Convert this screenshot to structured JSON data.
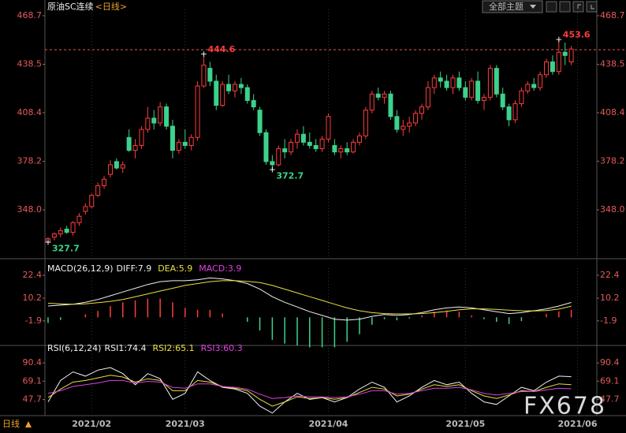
{
  "header": {
    "title": "原油SC连续",
    "period": "<日线>",
    "theme_button": "全部主题"
  },
  "footer": {
    "period": "日线",
    "watermark": "FX678"
  },
  "chart_data": [
    {
      "type": "candlestick",
      "up_color": "#ff3c3c",
      "down_color": "#3cd28c",
      "xlim": [
        -0.5,
        88.1
      ],
      "ylim": [
        317.6,
        472.6
      ],
      "yticks": [
        468.7,
        438.5,
        408.4,
        378.2,
        {
          "value": 348,
          "label": "348.0"
        }
      ],
      "xticks": [
        {
          "value": 7,
          "label": "2021/02"
        },
        {
          "value": 22,
          "label": "2021/03"
        },
        {
          "value": 45,
          "label": "2021/04"
        },
        {
          "value": 67,
          "label": "2021/05"
        },
        {
          "value": 85,
          "label": "2021/06"
        }
      ],
      "ref_line": 447.6,
      "annotations": [
        444.6,
        453.6,
        372.7,
        327.7
      ],
      "candles": [
        [
          328,
          331,
          327.7,
          330
        ],
        [
          331,
          334,
          329,
          333
        ],
        [
          333,
          337,
          331,
          335
        ],
        [
          336,
          338,
          333,
          334
        ],
        [
          334,
          341,
          332,
          340
        ],
        [
          340,
          346,
          338,
          344
        ],
        [
          347,
          352,
          345,
          350
        ],
        [
          350,
          358,
          349,
          357
        ],
        [
          357,
          365,
          356,
          363
        ],
        [
          363,
          369,
          361,
          367
        ],
        [
          370,
          379,
          368,
          376
        ],
        [
          378,
          380,
          373,
          374
        ],
        [
          374,
          378,
          371,
          376
        ],
        [
          393,
          398,
          384,
          385
        ],
        [
          385,
          392,
          380,
          388
        ],
        [
          388,
          400,
          386,
          398
        ],
        [
          398,
          412,
          396,
          405
        ],
        [
          405,
          410,
          398,
          402
        ],
        [
          402,
          415,
          400,
          412
        ],
        [
          412,
          414,
          398,
          400
        ],
        [
          400,
          404,
          380,
          385
        ],
        [
          385,
          392,
          383,
          390
        ],
        [
          390,
          398,
          386,
          388
        ],
        [
          388,
          395,
          385,
          393
        ],
        [
          393,
          428,
          391,
          425
        ],
        [
          425,
          444.6,
          424,
          438
        ],
        [
          436,
          440,
          425,
          428
        ],
        [
          428,
          432,
          410,
          413
        ],
        [
          413,
          428,
          412,
          426
        ],
        [
          426,
          432,
          420,
          422
        ],
        [
          422,
          428,
          418,
          426
        ],
        [
          426,
          430,
          420,
          424
        ],
        [
          424,
          426,
          414,
          416
        ],
        [
          416,
          420,
          410,
          412
        ],
        [
          410,
          412,
          394,
          396
        ],
        [
          396,
          398,
          376,
          378
        ],
        [
          378,
          382,
          372.7,
          376
        ],
        [
          376,
          388,
          375,
          386
        ],
        [
          386,
          392,
          380,
          384
        ],
        [
          384,
          392,
          382,
          390
        ],
        [
          390,
          398,
          386,
          395
        ],
        [
          395,
          400,
          388,
          390
        ],
        [
          390,
          396,
          386,
          388
        ],
        [
          388,
          392,
          384,
          386
        ],
        [
          386,
          394,
          384,
          392
        ],
        [
          392,
          408,
          390,
          406
        ],
        [
          388,
          392,
          382,
          384
        ],
        [
          384,
          388,
          380,
          386
        ],
        [
          386,
          390,
          382,
          384
        ],
        [
          384,
          392,
          383,
          390
        ],
        [
          390,
          396,
          388,
          394
        ],
        [
          394,
          412,
          392,
          410
        ],
        [
          410,
          422,
          408,
          420
        ],
        [
          420,
          424,
          416,
          418
        ],
        [
          418,
          422,
          414,
          420
        ],
        [
          420,
          422,
          404,
          406
        ],
        [
          406,
          410,
          396,
          398
        ],
        [
          398,
          404,
          394,
          400
        ],
        [
          400,
          406,
          396,
          402
        ],
        [
          402,
          410,
          400,
          408
        ],
        [
          408,
          414,
          404,
          412
        ],
        [
          412,
          428,
          410,
          424
        ],
        [
          424,
          432,
          420,
          430
        ],
        [
          430,
          434,
          424,
          428
        ],
        [
          428,
          432,
          422,
          424
        ],
        [
          424,
          432,
          420,
          430
        ],
        [
          430,
          434,
          422,
          424
        ],
        [
          424,
          428,
          416,
          418
        ],
        [
          418,
          430,
          416,
          428
        ],
        [
          428,
          434,
          414,
          416
        ],
        [
          416,
          420,
          410,
          418
        ],
        [
          418,
          438,
          416,
          436
        ],
        [
          436,
          438,
          418,
          420
        ],
        [
          420,
          424,
          410,
          412
        ],
        [
          412,
          414,
          400,
          404
        ],
        [
          404,
          416,
          402,
          414
        ],
        [
          414,
          424,
          412,
          422
        ],
        [
          422,
          428,
          420,
          426
        ],
        [
          426,
          430,
          422,
          424
        ],
        [
          424,
          434,
          422,
          432
        ],
        [
          432,
          442,
          430,
          440
        ],
        [
          440,
          444,
          432,
          434
        ],
        [
          434,
          453.6,
          432,
          446
        ],
        [
          446,
          452,
          438,
          444
        ],
        [
          440,
          450,
          438,
          448
        ]
      ]
    },
    {
      "type": "macd",
      "title": "MACD(26,12,9)",
      "ylim": [
        -15,
        26.2
      ],
      "yticks": [
        22.4,
        10.2,
        -1.9
      ],
      "x": [
        0,
        2,
        4,
        6,
        8,
        10,
        12,
        14,
        16,
        18,
        20,
        22,
        24,
        26,
        28,
        30,
        32,
        34,
        36,
        38,
        40,
        42,
        44,
        46,
        48,
        50,
        52,
        54,
        56,
        58,
        60,
        62,
        64,
        66,
        68,
        70,
        72,
        74,
        76,
        78,
        80,
        82,
        84
      ],
      "series": [
        {
          "name": "DIFF:7.9",
          "color": "#f0f0f0",
          "values": [
            6,
            6.5,
            7,
            8,
            9.5,
            11.5,
            13.5,
            15.5,
            17.5,
            19,
            19.5,
            19.5,
            20,
            21,
            20.5,
            19.5,
            18,
            15,
            11,
            8,
            5.5,
            3,
            1,
            -1,
            -1.5,
            -1,
            0.5,
            1.5,
            1,
            1.5,
            2.5,
            4,
            5,
            5.5,
            5,
            4,
            3,
            2,
            2.5,
            3.5,
            4.5,
            6,
            7.9
          ]
        },
        {
          "name": "DEA:5.9",
          "color": "#e8e040",
          "values": [
            7.5,
            7.2,
            7,
            7.2,
            7.8,
            8.5,
            9.5,
            11,
            12.5,
            14,
            15.5,
            17,
            18,
            19,
            19.5,
            19.5,
            19.2,
            18.5,
            17,
            15,
            13,
            11,
            9,
            7,
            5,
            3.5,
            2.5,
            2,
            1.8,
            1.8,
            2,
            2.5,
            3.2,
            4,
            4.5,
            4.5,
            4.2,
            3.8,
            3.5,
            3.4,
            3.6,
            4.4,
            5.9
          ]
        },
        {
          "name": "MACD:3.9",
          "color": "#e040e0",
          "type": "histogram",
          "up_color": "#ff3c3c",
          "down_color": "#3cd28c",
          "values": [
            -3,
            -1.4,
            0,
            1.6,
            3.4,
            6,
            8,
            9,
            10,
            10,
            8,
            5,
            4,
            4,
            2,
            0,
            -2.4,
            -7,
            -12,
            -14,
            -15,
            -16,
            -16,
            -16,
            -13,
            -9,
            -4,
            -1,
            -1.6,
            -0.6,
            1,
            3,
            3.6,
            3,
            1,
            -1,
            -2.4,
            -3.6,
            -2,
            0.2,
            1.8,
            3.2,
            3.9
          ]
        }
      ]
    },
    {
      "type": "rsi",
      "title": "RSI(6,12,24)",
      "ylim": [
        29,
        108
      ],
      "yticks": [
        90.4,
        69.1,
        47.7
      ],
      "x": [
        0,
        2,
        4,
        6,
        8,
        10,
        12,
        14,
        16,
        18,
        20,
        22,
        24,
        26,
        28,
        30,
        32,
        34,
        36,
        38,
        40,
        42,
        44,
        46,
        48,
        50,
        52,
        54,
        56,
        58,
        60,
        62,
        64,
        66,
        68,
        70,
        72,
        74,
        76,
        78,
        80,
        82,
        84
      ],
      "series": [
        {
          "name": "RSI1:74.4",
          "color": "#f0f0f0",
          "values": [
            45,
            70,
            80,
            75,
            82,
            85,
            78,
            65,
            78,
            72,
            48,
            55,
            80,
            70,
            62,
            60,
            55,
            40,
            32,
            45,
            55,
            48,
            50,
            45,
            50,
            60,
            68,
            62,
            45,
            52,
            62,
            70,
            65,
            68,
            55,
            45,
            42,
            52,
            62,
            58,
            68,
            75,
            74.4
          ]
        },
        {
          "name": "RSI2:65.1",
          "color": "#e8e040",
          "values": [
            50,
            60,
            68,
            70,
            73,
            76,
            74,
            68,
            72,
            70,
            58,
            58,
            70,
            68,
            63,
            61,
            58,
            48,
            40,
            45,
            51,
            49,
            50,
            48,
            50,
            56,
            62,
            60,
            52,
            54,
            60,
            65,
            63,
            65,
            58,
            52,
            49,
            53,
            58,
            57,
            62,
            66,
            65.1
          ]
        },
        {
          "name": "RSI3:60.3",
          "color": "#e040e0",
          "values": [
            55,
            58,
            63,
            65,
            67,
            70,
            70,
            67,
            69,
            68,
            62,
            61,
            66,
            66,
            63,
            62,
            60,
            54,
            49,
            50,
            52,
            51,
            51,
            50,
            51,
            54,
            58,
            58,
            54,
            55,
            58,
            61,
            61,
            62,
            59,
            55,
            53,
            55,
            57,
            57,
            59,
            61,
            60.3
          ]
        }
      ]
    }
  ]
}
